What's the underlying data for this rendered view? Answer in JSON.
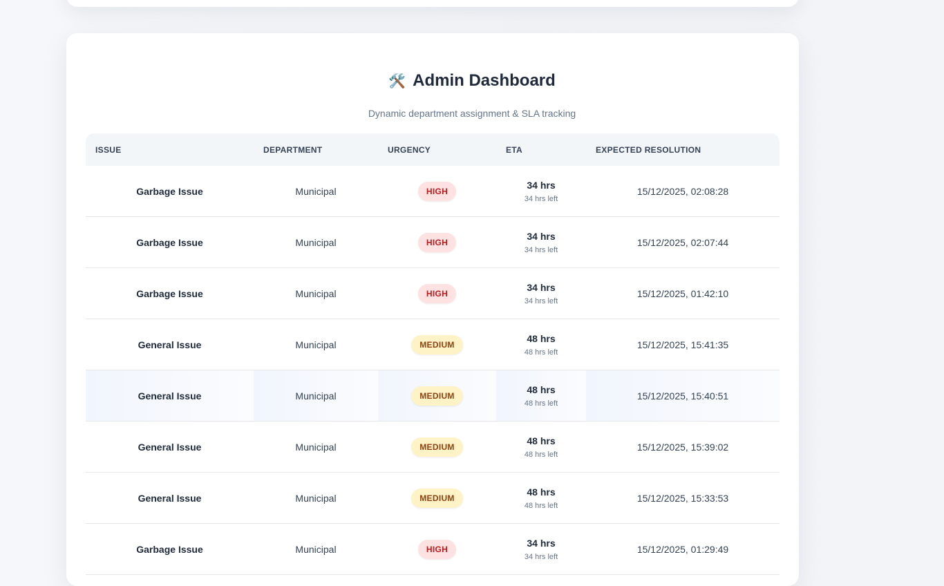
{
  "header": {
    "title": "Admin Dashboard",
    "icon": "hammer-and-wrench-icon",
    "subtitle": "Dynamic department assignment & SLA tracking"
  },
  "table": {
    "columns": [
      "ISSUE",
      "DEPARTMENT",
      "URGENCY",
      "ETA",
      "EXPECTED RESOLUTION"
    ],
    "rows": [
      {
        "issue": "Garbage Issue",
        "department": "Municipal",
        "urgency": "HIGH",
        "eta": "34 hrs",
        "eta_left": "34 hrs left",
        "expected": "15/12/2025, 02:08:28"
      },
      {
        "issue": "Garbage Issue",
        "department": "Municipal",
        "urgency": "HIGH",
        "eta": "34 hrs",
        "eta_left": "34 hrs left",
        "expected": "15/12/2025, 02:07:44"
      },
      {
        "issue": "Garbage Issue",
        "department": "Municipal",
        "urgency": "HIGH",
        "eta": "34 hrs",
        "eta_left": "34 hrs left",
        "expected": "15/12/2025, 01:42:10"
      },
      {
        "issue": "General Issue",
        "department": "Municipal",
        "urgency": "MEDIUM",
        "eta": "48 hrs",
        "eta_left": "48 hrs left",
        "expected": "15/12/2025, 15:41:35"
      },
      {
        "issue": "General Issue",
        "department": "Municipal",
        "urgency": "MEDIUM",
        "eta": "48 hrs",
        "eta_left": "48 hrs left",
        "expected": "15/12/2025, 15:40:51"
      },
      {
        "issue": "General Issue",
        "department": "Municipal",
        "urgency": "MEDIUM",
        "eta": "48 hrs",
        "eta_left": "48 hrs left",
        "expected": "15/12/2025, 15:39:02"
      },
      {
        "issue": "General Issue",
        "department": "Municipal",
        "urgency": "MEDIUM",
        "eta": "48 hrs",
        "eta_left": "48 hrs left",
        "expected": "15/12/2025, 15:33:53"
      },
      {
        "issue": "Garbage Issue",
        "department": "Municipal",
        "urgency": "HIGH",
        "eta": "34 hrs",
        "eta_left": "34 hrs left",
        "expected": "15/12/2025, 01:29:49"
      }
    ]
  },
  "colors": {
    "high_bg": "#fee2e2",
    "high_text": "#b91c1c",
    "medium_bg": "#fef3c7",
    "medium_text": "#92400e"
  }
}
